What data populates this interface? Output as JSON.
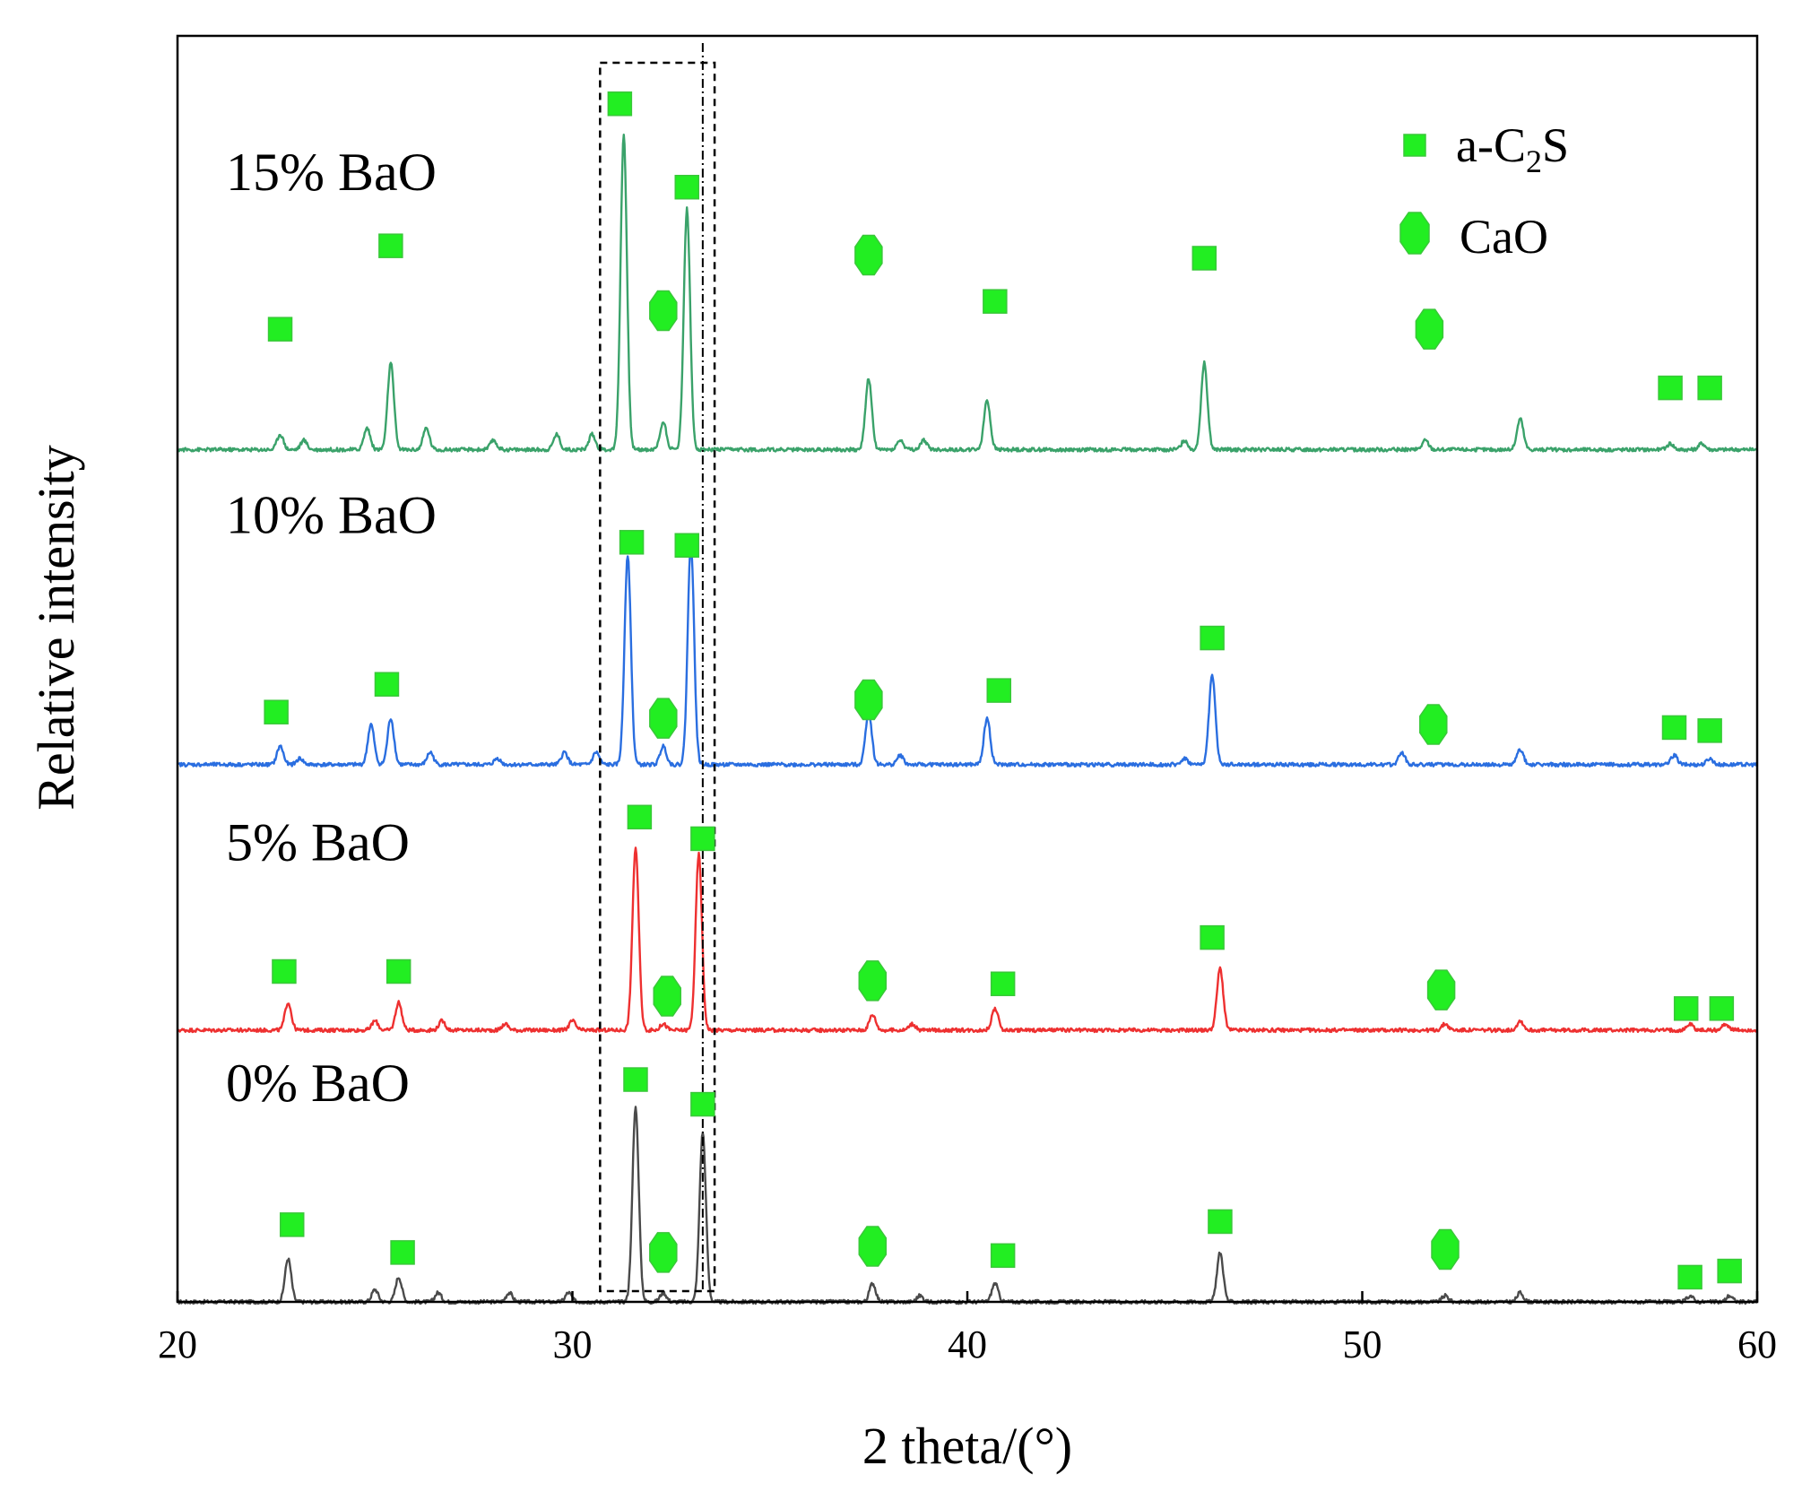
{
  "chart_data": {
    "type": "line",
    "title": "",
    "xlabel": "2 theta/(°)",
    "ylabel": "Relative intensity",
    "xlim": [
      20,
      60
    ],
    "ylim": [
      0,
      4.1
    ],
    "xticks": [
      20,
      30,
      40,
      50,
      60
    ],
    "grid": false,
    "legend_position": "top-right",
    "legend": [
      {
        "name": "a-C2S",
        "label_main": "a-C",
        "label_sub": "2",
        "label_tail": "S",
        "marker": "square"
      },
      {
        "name": "CaO",
        "label_main": "CaO",
        "label_sub": "",
        "label_tail": "",
        "marker": "octagon"
      }
    ],
    "marker_color": "#22ee22",
    "box_region": {
      "x_range": [
        30.7,
        33.6
      ]
    },
    "reference_line": {
      "x": 33.3
    },
    "series": [
      {
        "name": "0% BaO",
        "label": "0% BaO",
        "color": "#4a4a4a",
        "baseline": 0.0,
        "label_level": 0.65,
        "peaks": [
          [
            22.8,
            0.14
          ],
          [
            25.0,
            0.04
          ],
          [
            25.6,
            0.08
          ],
          [
            26.6,
            0.03
          ],
          [
            28.4,
            0.03
          ],
          [
            29.9,
            0.03
          ],
          [
            31.6,
            0.63
          ],
          [
            32.3,
            0.03
          ],
          [
            33.3,
            0.55
          ],
          [
            37.6,
            0.06
          ],
          [
            38.8,
            0.02
          ],
          [
            40.7,
            0.06
          ],
          [
            46.4,
            0.16
          ],
          [
            52.1,
            0.02
          ],
          [
            54.0,
            0.03
          ],
          [
            58.3,
            0.02
          ],
          [
            59.3,
            0.02
          ]
        ],
        "markers": [
          {
            "type": "square",
            "x": 22.9,
            "y": 0.25
          },
          {
            "type": "square",
            "x": 25.7,
            "y": 0.16
          },
          {
            "type": "square",
            "x": 31.6,
            "y": 0.72
          },
          {
            "type": "square",
            "x": 33.3,
            "y": 0.64
          },
          {
            "type": "octagon",
            "x": 32.3,
            "y": 0.16
          },
          {
            "type": "octagon",
            "x": 37.6,
            "y": 0.18
          },
          {
            "type": "square",
            "x": 40.9,
            "y": 0.15
          },
          {
            "type": "square",
            "x": 46.4,
            "y": 0.26
          },
          {
            "type": "octagon",
            "x": 52.1,
            "y": 0.17
          },
          {
            "type": "square",
            "x": 58.3,
            "y": 0.08
          },
          {
            "type": "square",
            "x": 59.3,
            "y": 0.1
          }
        ]
      },
      {
        "name": "5% BaO",
        "label": "5% BaO",
        "color": "#ee3030",
        "baseline": 0.88,
        "label_level": 1.43,
        "peaks": [
          [
            22.8,
            0.09
          ],
          [
            25.0,
            0.03
          ],
          [
            25.6,
            0.09
          ],
          [
            26.7,
            0.03
          ],
          [
            28.3,
            0.02
          ],
          [
            30.0,
            0.03
          ],
          [
            31.6,
            0.59
          ],
          [
            32.3,
            0.02
          ],
          [
            33.2,
            0.57
          ],
          [
            37.6,
            0.05
          ],
          [
            38.6,
            0.02
          ],
          [
            40.7,
            0.07
          ],
          [
            46.4,
            0.2
          ],
          [
            52.1,
            0.02
          ],
          [
            54.0,
            0.03
          ],
          [
            58.3,
            0.02
          ],
          [
            59.2,
            0.02
          ]
        ],
        "markers": [
          {
            "type": "square",
            "x": 22.7,
            "y": 1.07
          },
          {
            "type": "square",
            "x": 25.6,
            "y": 1.07
          },
          {
            "type": "square",
            "x": 31.7,
            "y": 1.57
          },
          {
            "type": "square",
            "x": 33.3,
            "y": 1.5
          },
          {
            "type": "octagon",
            "x": 32.4,
            "y": 0.99
          },
          {
            "type": "octagon",
            "x": 37.6,
            "y": 1.04
          },
          {
            "type": "square",
            "x": 40.9,
            "y": 1.03
          },
          {
            "type": "square",
            "x": 46.2,
            "y": 1.18
          },
          {
            "type": "octagon",
            "x": 52.0,
            "y": 1.01
          },
          {
            "type": "square",
            "x": 58.2,
            "y": 0.95
          },
          {
            "type": "square",
            "x": 59.1,
            "y": 0.95
          }
        ]
      },
      {
        "name": "10% BaO",
        "label": "10% BaO",
        "color": "#2a6ee0",
        "baseline": 1.74,
        "label_level": 2.49,
        "peaks": [
          [
            22.6,
            0.06
          ],
          [
            23.1,
            0.02
          ],
          [
            24.9,
            0.13
          ],
          [
            25.4,
            0.15
          ],
          [
            26.4,
            0.04
          ],
          [
            28.1,
            0.02
          ],
          [
            29.8,
            0.04
          ],
          [
            30.6,
            0.04
          ],
          [
            31.4,
            0.68
          ],
          [
            32.3,
            0.06
          ],
          [
            33.0,
            0.72
          ],
          [
            37.5,
            0.17
          ],
          [
            38.3,
            0.03
          ],
          [
            40.5,
            0.15
          ],
          [
            45.5,
            0.02
          ],
          [
            46.2,
            0.29
          ],
          [
            51.0,
            0.04
          ],
          [
            54.0,
            0.05
          ],
          [
            57.9,
            0.03
          ],
          [
            58.8,
            0.02
          ]
        ],
        "markers": [
          {
            "type": "square",
            "x": 22.5,
            "y": 1.91
          },
          {
            "type": "square",
            "x": 25.3,
            "y": 2.0
          },
          {
            "type": "square",
            "x": 31.5,
            "y": 2.46
          },
          {
            "type": "square",
            "x": 32.9,
            "y": 2.45
          },
          {
            "type": "octagon",
            "x": 32.3,
            "y": 1.89
          },
          {
            "type": "octagon",
            "x": 37.5,
            "y": 1.95
          },
          {
            "type": "square",
            "x": 40.8,
            "y": 1.98
          },
          {
            "type": "square",
            "x": 46.2,
            "y": 2.15
          },
          {
            "type": "octagon",
            "x": 51.8,
            "y": 1.87
          },
          {
            "type": "square",
            "x": 57.9,
            "y": 1.86
          },
          {
            "type": "square",
            "x": 58.8,
            "y": 1.85
          }
        ]
      },
      {
        "name": "15% BaO",
        "label": "15% BaO",
        "color": "#3aa26a",
        "baseline": 2.76,
        "label_level": 3.6,
        "peaks": [
          [
            22.6,
            0.05
          ],
          [
            23.2,
            0.03
          ],
          [
            24.8,
            0.07
          ],
          [
            25.4,
            0.28
          ],
          [
            26.3,
            0.07
          ],
          [
            28.0,
            0.03
          ],
          [
            29.6,
            0.05
          ],
          [
            30.5,
            0.05
          ],
          [
            31.3,
            1.02
          ],
          [
            32.3,
            0.09
          ],
          [
            32.9,
            0.78
          ],
          [
            37.5,
            0.23
          ],
          [
            38.3,
            0.03
          ],
          [
            38.9,
            0.03
          ],
          [
            40.5,
            0.16
          ],
          [
            45.5,
            0.03
          ],
          [
            46.0,
            0.28
          ],
          [
            51.6,
            0.03
          ],
          [
            54.0,
            0.1
          ],
          [
            57.8,
            0.02
          ],
          [
            58.6,
            0.02
          ]
        ],
        "markers": [
          {
            "type": "square",
            "x": 22.6,
            "y": 3.15
          },
          {
            "type": "square",
            "x": 25.4,
            "y": 3.42
          },
          {
            "type": "square",
            "x": 31.2,
            "y": 3.88
          },
          {
            "type": "square",
            "x": 32.9,
            "y": 3.61
          },
          {
            "type": "octagon",
            "x": 32.3,
            "y": 3.21
          },
          {
            "type": "octagon",
            "x": 37.5,
            "y": 3.39
          },
          {
            "type": "square",
            "x": 40.7,
            "y": 3.24
          },
          {
            "type": "square",
            "x": 46.0,
            "y": 3.38
          },
          {
            "type": "octagon",
            "x": 51.7,
            "y": 3.15
          },
          {
            "type": "square",
            "x": 57.8,
            "y": 2.96
          },
          {
            "type": "square",
            "x": 58.8,
            "y": 2.96
          }
        ]
      }
    ]
  }
}
